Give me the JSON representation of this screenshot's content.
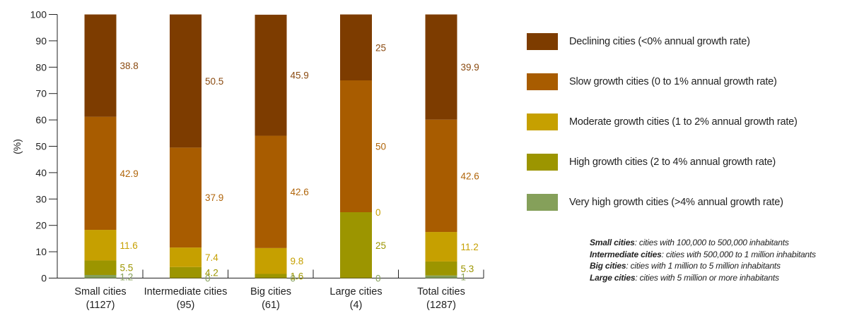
{
  "chart_data": {
    "type": "bar",
    "stacked": true,
    "ylabel": "(%)",
    "ylim": [
      0,
      100
    ],
    "yticks": [
      0,
      10,
      20,
      30,
      40,
      50,
      60,
      70,
      80,
      90,
      100
    ],
    "categories": [
      {
        "name": "Small cities",
        "count": "(1127)"
      },
      {
        "name": "Intermediate cities",
        "count": "(95)"
      },
      {
        "name": "Big cities",
        "count": "(61)"
      },
      {
        "name": "Large cities",
        "count": "(4)"
      },
      {
        "name": "Total cities",
        "count": "(1287)"
      }
    ],
    "series": [
      {
        "name": "Very high growth cities (>4% annual growth rate)",
        "color": "#85a05a",
        "values": [
          1.2,
          0,
          0,
          0,
          1
        ],
        "labels": [
          "1.2",
          "0",
          "0",
          "0",
          "1"
        ],
        "label_color": "#85a05a"
      },
      {
        "name": "High growth cities (2 to 4% annual growth rate)",
        "color": "#9c9500",
        "values": [
          5.5,
          4.2,
          1.6,
          25,
          5.3
        ],
        "labels": [
          "5.5",
          "4.2",
          "1.6",
          "25",
          "5.3"
        ],
        "label_color": "#9c9500"
      },
      {
        "name": "Moderate growth cities (1 to 2% annual growth rate)",
        "color": "#c6a000",
        "values": [
          11.6,
          7.4,
          9.8,
          0,
          11.2
        ],
        "labels": [
          "11.6",
          "7.4",
          "9.8",
          "0",
          "11.2"
        ],
        "label_color": "#c6a000"
      },
      {
        "name": "Slow growth cities (0 to 1% annual growth rate)",
        "color": "#a85c00",
        "values": [
          42.9,
          37.9,
          42.6,
          50,
          42.6
        ],
        "labels": [
          "42.9",
          "37.9",
          "42.6",
          "50",
          "42.6"
        ],
        "label_color": "#b0650a"
      },
      {
        "name": "Declining cities (<0% annual growth rate)",
        "color": "#7d3c00",
        "values": [
          38.8,
          50.5,
          45.9,
          25,
          39.9
        ],
        "labels": [
          "38.8",
          "50.5",
          "45.9",
          "25",
          "39.9"
        ],
        "label_color": "#8a4a10"
      }
    ],
    "legend": {
      "placement": "right",
      "items": [
        {
          "label": "Declining cities (<0% annual growth rate)",
          "color": "#7d3c00"
        },
        {
          "label": "Slow growth cities (0 to 1% annual growth rate)",
          "color": "#a85c00"
        },
        {
          "label": "Moderate growth cities (1 to 2% annual growth rate)",
          "color": "#c6a000"
        },
        {
          "label": "High growth cities (2 to 4% annual growth rate)",
          "color": "#9c9500"
        },
        {
          "label": "Very high growth cities (>4% annual growth rate)",
          "color": "#85a05a"
        }
      ]
    },
    "notes": [
      {
        "term": "Small cities",
        "text": ": cities with 100,000 to 500,000 inhabitants"
      },
      {
        "term": "Intermediate cities",
        "text": ": cities with 500,000 to 1 million inhabitants"
      },
      {
        "term": "Big cities",
        "text": ": cities with 1 million to 5 million inhabitants"
      },
      {
        "term": "Large cities",
        "text": ": cities with 5 million or more inhabitants"
      }
    ]
  }
}
